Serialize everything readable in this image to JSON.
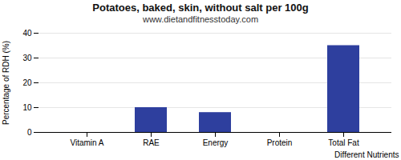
{
  "chart_data": {
    "type": "bar",
    "title": "Potatoes, baked, skin, without salt per 100g",
    "subtitle": "www.dietandfitnesstoday.com",
    "xlabel": "Different Nutrients",
    "ylabel": "Percentage of RDH (%)",
    "categories": [
      "Vitamin A",
      "RAE",
      "Energy",
      "Protein",
      "Total Fat"
    ],
    "values": [
      0,
      10,
      8,
      0,
      35
    ],
    "color": "#2e3f9e",
    "ylim": [
      0,
      40
    ],
    "yticks": [
      0,
      10,
      20,
      30,
      40
    ],
    "grid": true
  }
}
